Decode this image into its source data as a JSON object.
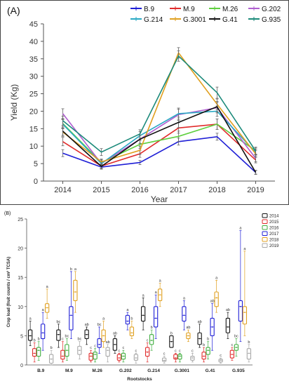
{
  "chart_data": [
    {
      "type": "line",
      "panel_label": "(A)",
      "xlabel": "Year",
      "ylabel": "Yield (Kg)",
      "ylim": [
        0,
        45
      ],
      "yticks": [
        0,
        5,
        10,
        15,
        20,
        25,
        30,
        35,
        40,
        45
      ],
      "grid": false,
      "legend_position": "top-right",
      "x": [
        "2014",
        "2015",
        "2016",
        "2017",
        "2018",
        "2019"
      ],
      "series": [
        {
          "name": "B.9",
          "color": "#1f1fd6",
          "values": [
            8.0,
            4.0,
            5.3,
            11.3,
            12.7,
            2.5
          ],
          "errors": [
            1.0,
            0.6,
            0.6,
            1.0,
            1.0,
            0.5
          ]
        },
        {
          "name": "M.9",
          "color": "#e02b2b",
          "values": [
            11.3,
            4.3,
            7.8,
            15.2,
            16.3,
            6.0
          ],
          "errors": [
            1.2,
            0.6,
            1.0,
            1.5,
            1.5,
            0.8
          ]
        },
        {
          "name": "M.26",
          "color": "#5fcf3f",
          "values": [
            16.5,
            5.3,
            10.5,
            12.8,
            16.3,
            8.7
          ],
          "errors": [
            1.3,
            0.8,
            1.2,
            1.5,
            1.5,
            1.0
          ]
        },
        {
          "name": "G.202",
          "color": "#b05fd0",
          "values": [
            19.3,
            5.0,
            12.0,
            19.0,
            21.0,
            6.5
          ],
          "errors": [
            1.4,
            0.8,
            1.2,
            1.6,
            1.5,
            1.0
          ]
        },
        {
          "name": "G.214",
          "color": "#2aa9c4",
          "values": [
            16.3,
            5.0,
            13.0,
            19.3,
            20.0,
            8.2
          ],
          "errors": [
            1.3,
            0.8,
            1.2,
            1.6,
            1.5,
            1.0
          ]
        },
        {
          "name": "G.3001",
          "color": "#e0a020",
          "values": [
            14.0,
            5.5,
            8.8,
            36.7,
            22.0,
            7.8
          ],
          "errors": [
            1.2,
            0.8,
            1.2,
            1.5,
            1.5,
            1.0
          ]
        },
        {
          "name": "G.41",
          "color": "#111111",
          "values": [
            14.3,
            4.2,
            12.0,
            16.8,
            21.3,
            2.5
          ],
          "errors": [
            1.2,
            0.6,
            1.2,
            1.5,
            1.5,
            0.6
          ]
        },
        {
          "name": "G.935",
          "color": "#1b8a7a",
          "values": [
            17.3,
            8.3,
            13.5,
            35.8,
            25.3,
            8.6
          ],
          "errors": [
            1.3,
            1.0,
            1.2,
            1.5,
            1.6,
            1.0
          ]
        }
      ]
    },
    {
      "type": "box",
      "panel_label": "(B)",
      "xlabel": "Rootstocks",
      "ylabel": "Crop load (fruit counts / cm² TCSA)",
      "ylim": [
        0,
        25
      ],
      "yticks": [
        0,
        5,
        10,
        15,
        20,
        25
      ],
      "legend_position": "top-right",
      "categories": [
        "B.9",
        "M.9",
        "M.26",
        "G.202",
        "G.214",
        "G.3001",
        "G.41",
        "G.935"
      ],
      "series": [
        {
          "name": "2014",
          "color": "#111111",
          "boxes": [
            [
              3.3,
              4.2,
              5.0,
              6.0,
              7.5
            ],
            [
              3.0,
              4.2,
              5.2,
              6.0,
              7.0
            ],
            [
              3.5,
              4.5,
              5.2,
              6.0,
              6.5
            ],
            [
              2.0,
              2.5,
              3.5,
              4.5,
              5.0
            ],
            [
              6.0,
              7.5,
              8.5,
              10.0,
              11.5
            ],
            [
              3.0,
              3.0,
              4.0,
              5.0,
              5.0
            ],
            [
              3.0,
              3.5,
              4.5,
              5.5,
              7.0
            ],
            [
              4.5,
              5.5,
              6.5,
              8.0,
              9.0
            ]
          ],
          "letters": [
            "a",
            "bc",
            "ab",
            "ab",
            "a",
            "b",
            "ab",
            "ab"
          ]
        },
        {
          "name": "2015",
          "color": "#e02b2b",
          "boxes": [
            [
              0.5,
              1.5,
              2.0,
              2.8,
              3.8
            ],
            [
              0.5,
              1.0,
              1.5,
              2.5,
              4.0
            ],
            [
              0.5,
              0.8,
              1.5,
              2.0,
              2.5
            ],
            [
              0.5,
              0.8,
              1.2,
              1.8,
              2.0
            ],
            [
              0.5,
              1.5,
              2.2,
              3.0,
              3.8
            ],
            [
              0.5,
              1.0,
              1.2,
              1.8,
              2.0
            ],
            [
              0.5,
              1.0,
              1.5,
              2.2,
              3.0
            ],
            [
              0.8,
              1.2,
              1.8,
              2.5,
              3.0
            ]
          ],
          "letters": [
            "b",
            "c",
            "c",
            "c",
            "c",
            "c",
            "b",
            "c"
          ]
        },
        {
          "name": "2016",
          "color": "#3fae3f",
          "boxes": [
            [
              0.8,
              1.5,
              2.5,
              3.0,
              4.0
            ],
            [
              0.8,
              1.5,
              2.5,
              3.5,
              4.5
            ],
            [
              0.5,
              1.0,
              1.8,
              2.2,
              2.8
            ],
            [
              0.5,
              1.0,
              1.5,
              2.0,
              2.5
            ],
            [
              2.5,
              3.5,
              4.2,
              5.2,
              6.0
            ],
            [
              0.5,
              1.0,
              1.5,
              1.8,
              2.0
            ],
            [
              1.0,
              1.8,
              2.5,
              3.0,
              4.0
            ],
            [
              1.5,
              2.5,
              3.0,
              3.5,
              4.5
            ]
          ],
          "letters": [
            "b",
            "bc",
            "c",
            "c",
            "b",
            "c",
            "b",
            "bc"
          ]
        },
        {
          "name": "2017",
          "color": "#1f1fd6",
          "boxes": [
            [
              2.5,
              4.5,
              5.5,
              7.0,
              9.0
            ],
            [
              4.5,
              6.0,
              8.5,
              10.0,
              16.0
            ],
            [
              2.0,
              3.0,
              3.5,
              4.5,
              6.5
            ],
            [
              6.0,
              7.0,
              7.5,
              8.5,
              9.0
            ],
            [
              4.5,
              6.5,
              8.0,
              10.0,
              12.0
            ],
            [
              6.0,
              7.5,
              8.5,
              10.0,
              11.0
            ],
            [
              2.5,
              5.0,
              6.5,
              8.0,
              10.5
            ],
            [
              4.0,
              7.5,
              10.0,
              11.0,
              23.0
            ]
          ],
          "letters": [
            "a",
            "b",
            "bc",
            "a",
            "a",
            "a",
            "ab",
            "a"
          ]
        },
        {
          "name": "2018",
          "color": "#e0a020",
          "boxes": [
            [
              8.0,
              9.0,
              9.8,
              10.5,
              13.0
            ],
            [
              9.0,
              11.0,
              12.5,
              14.5,
              16.0
            ],
            [
              3.0,
              4.0,
              5.0,
              6.0,
              7.5
            ],
            [
              4.5,
              5.0,
              5.5,
              6.5,
              7.5
            ],
            [
              10.0,
              11.0,
              12.0,
              13.0,
              14.0
            ],
            [
              4.0,
              4.5,
              5.0,
              5.5,
              6.0
            ],
            [
              9.0,
              10.0,
              11.5,
              12.5,
              14.5
            ],
            [
              5.0,
              7.0,
              9.0,
              10.0,
              19.5
            ]
          ],
          "letters": [
            "a",
            "a",
            "a",
            "b",
            "a",
            "ab",
            "a",
            "a"
          ]
        },
        {
          "name": "2019",
          "color": "#a8a8a8",
          "boxes": [
            [
              0.0,
              0.3,
              1.0,
              1.8,
              2.5
            ],
            [
              1.0,
              1.8,
              2.5,
              3.2,
              4.0
            ],
            [
              0.5,
              1.5,
              2.5,
              3.0,
              3.5
            ],
            [
              0.3,
              0.8,
              1.2,
              1.8,
              2.0
            ],
            [
              0.3,
              0.6,
              0.8,
              1.2,
              1.5
            ],
            [
              0.5,
              0.8,
              1.2,
              1.5,
              2.0
            ],
            [
              0.3,
              0.5,
              0.8,
              1.0,
              1.2
            ],
            [
              0.5,
              1.0,
              2.0,
              2.8,
              3.5
            ]
          ],
          "letters": [
            "b",
            "bc",
            "ab",
            "c",
            "c",
            "c",
            "c",
            "b"
          ]
        }
      ]
    }
  ]
}
